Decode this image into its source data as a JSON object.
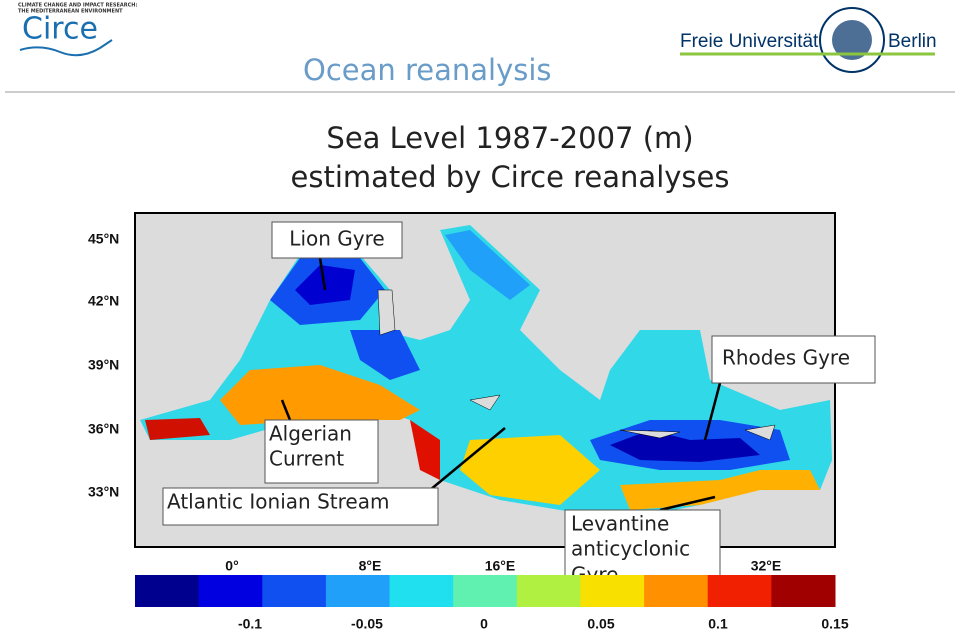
{
  "header": {
    "logo_left": "Circe",
    "logo_left_tagline": [
      "CLIMATE CHANGE AND IMPACT RESEARCH:",
      "THE MEDITERRANEAN ENVIRONMENT"
    ],
    "logo_right_name": "Freie Universität",
    "logo_right_city": "Berlin",
    "title": "Ocean reanalysis"
  },
  "heading": [
    "Sea Level 1987-2007 (m)",
    "estimated by Circe reanalyses"
  ],
  "map": {
    "lat_labels": [
      "45°N",
      "42°N",
      "39°N",
      "36°N",
      "33°N"
    ],
    "lon_labels": [
      "0°",
      "8°E",
      "16°E",
      "32°E"
    ]
  },
  "annotations": {
    "lion_gyre": "Lion Gyre",
    "rhodes_gyre": "Rhodes Gyre",
    "algerian_current": [
      "Algerian",
      "Current"
    ],
    "atlantic_ionian_stream": "Atlantic Ionian Stream",
    "levantine_gyre": [
      "Levantine",
      "anticyclonic",
      "Gyre"
    ]
  },
  "colorbar": {
    "colors": [
      "#00008f",
      "#0000e0",
      "#1050f0",
      "#20a0f8",
      "#20e0f0",
      "#60f0b0",
      "#b0f040",
      "#f8e000",
      "#ff9000",
      "#f02000",
      "#a00000"
    ],
    "ticks": [
      -0.1,
      -0.05,
      0,
      0.05,
      0.1,
      0.15
    ]
  }
}
